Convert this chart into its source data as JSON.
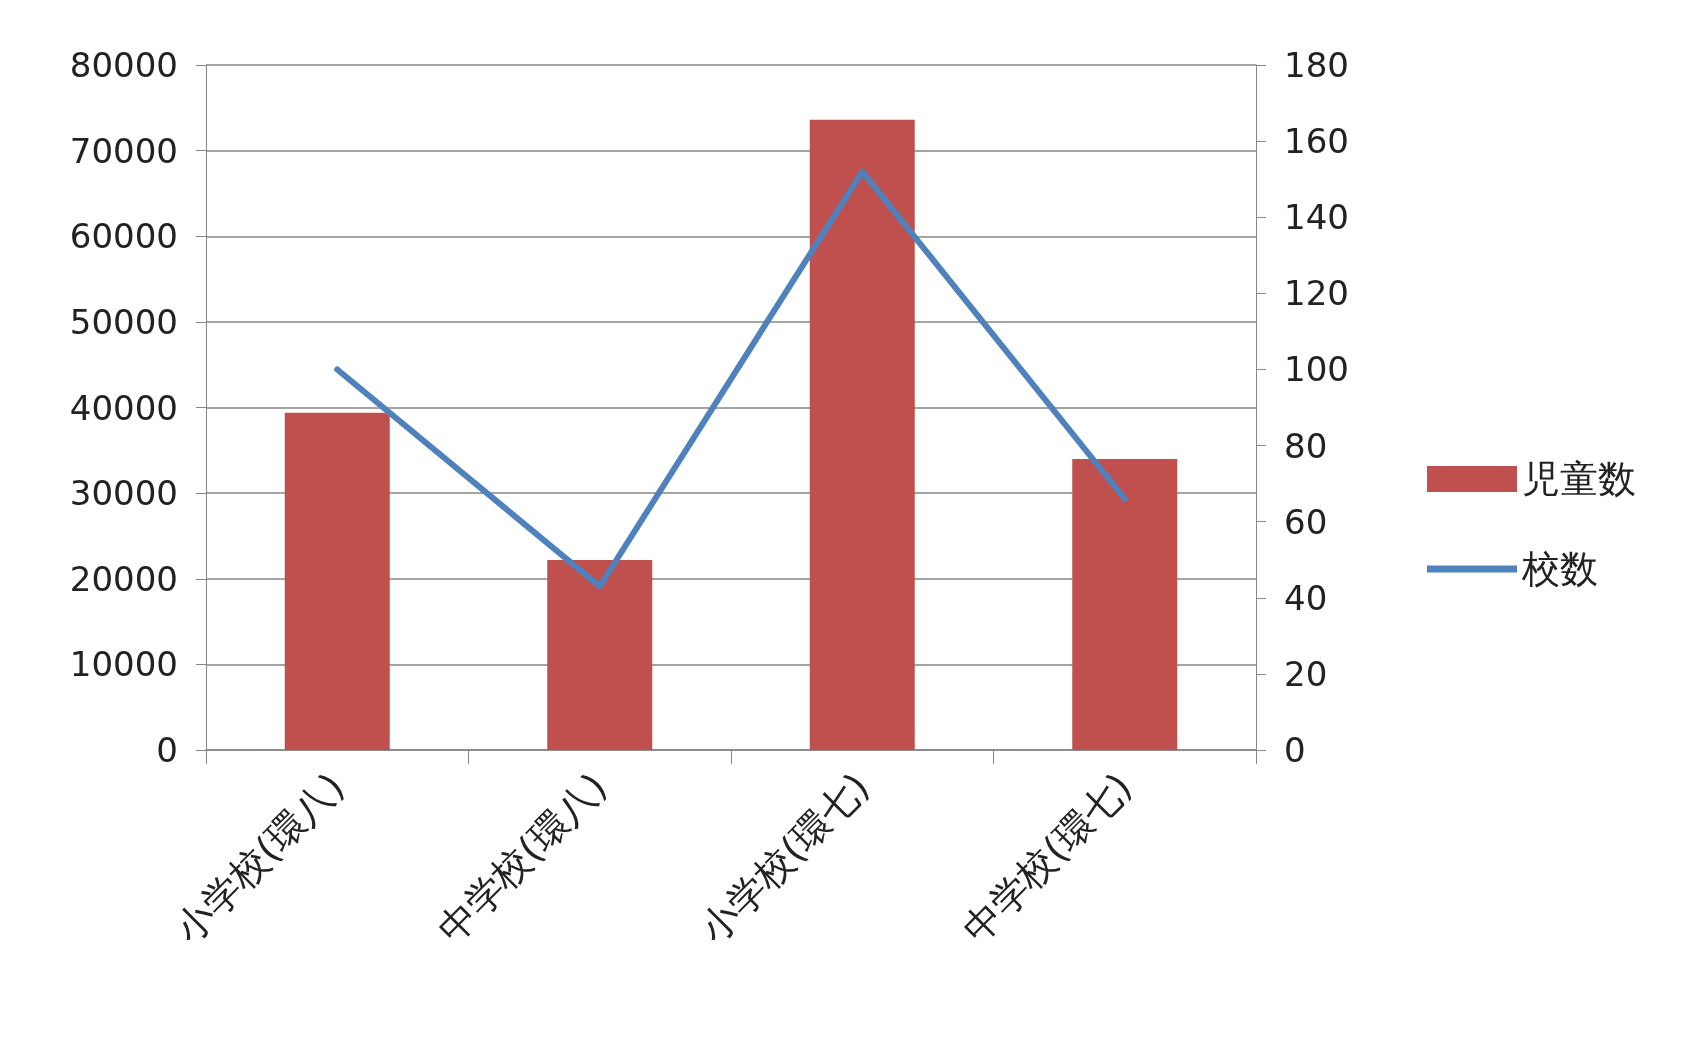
{
  "chart_data": {
    "type": "bar",
    "categories": [
      "小学校(環八)",
      "中学校(環八)",
      "小学校(環七)",
      "中学校(環七)"
    ],
    "series": [
      {
        "name": "児童数",
        "color": "#c0504d",
        "values": [
          39400,
          22200,
          73600,
          34000
        ]
      },
      {
        "name": "校数",
        "type": "line",
        "color": "#4f81bd",
        "axis": "y2",
        "values": [
          100,
          43,
          152,
          66
        ]
      }
    ],
    "ylim": [
      0,
      80000
    ],
    "yticks": [
      0,
      10000,
      20000,
      30000,
      40000,
      50000,
      60000,
      70000,
      80000
    ],
    "y2lim": [
      0,
      180
    ],
    "y2ticks": [
      0,
      20,
      40,
      60,
      80,
      100,
      120,
      140,
      160,
      180
    ],
    "grid": "y",
    "legend": "right",
    "marker": "none"
  }
}
